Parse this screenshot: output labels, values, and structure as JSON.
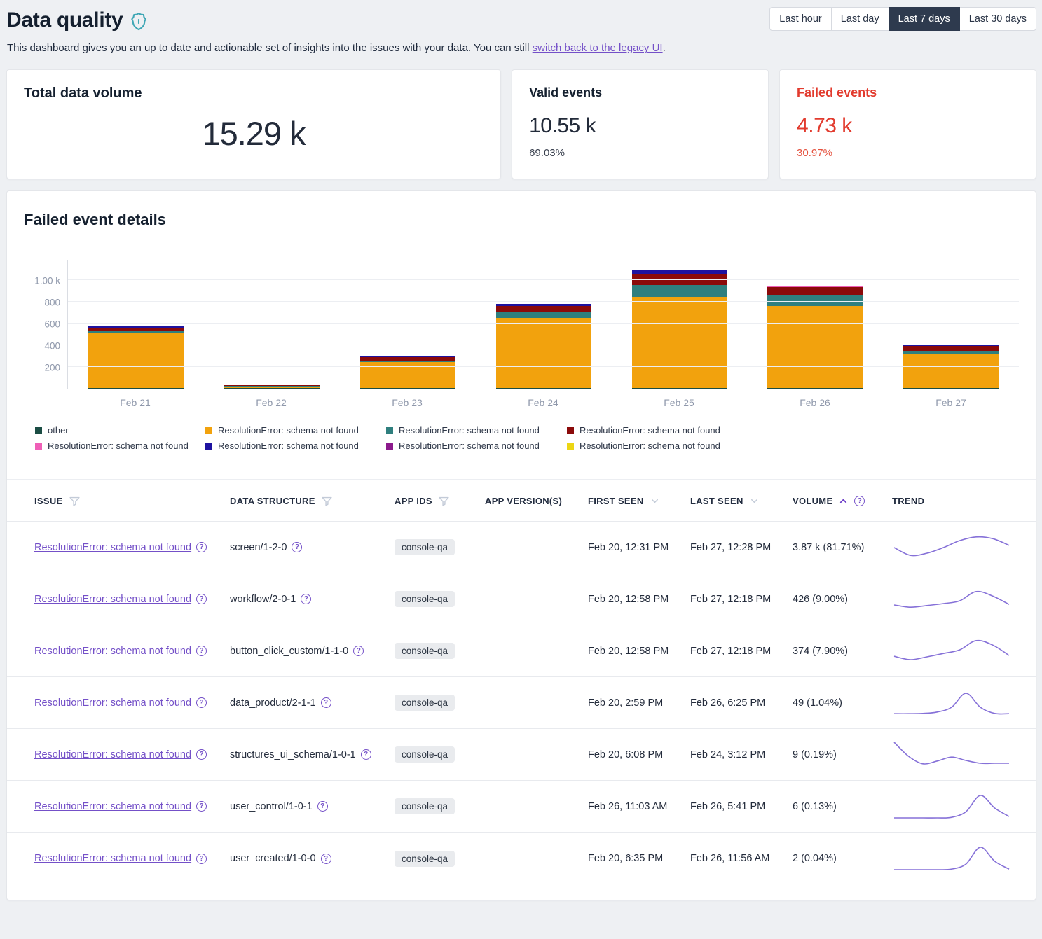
{
  "page": {
    "title": "Data quality",
    "subtitle_prefix": "This dashboard gives you an up to date and actionable set of insights into the issues with your data. You can still ",
    "subtitle_link": "switch back to the legacy UI",
    "subtitle_suffix": "."
  },
  "time_ranges": [
    {
      "label": "Last hour",
      "active": false
    },
    {
      "label": "Last day",
      "active": false
    },
    {
      "label": "Last 7 days",
      "active": true
    },
    {
      "label": "Last 30 days",
      "active": false
    }
  ],
  "stats": {
    "total": {
      "title": "Total data volume",
      "value": "15.29 k"
    },
    "valid": {
      "title": "Valid events",
      "value": "10.55 k",
      "percent": "69.03%"
    },
    "failed": {
      "title": "Failed events",
      "value": "4.73 k",
      "percent": "30.97%",
      "color": "#e23b2e"
    }
  },
  "failed_details": {
    "title": "Failed event details"
  },
  "chart_data": {
    "type": "bar",
    "stacked": true,
    "title": "Failed event details",
    "categories": [
      "Feb 21",
      "Feb 22",
      "Feb 23",
      "Feb 24",
      "Feb 25",
      "Feb 26",
      "Feb 27"
    ],
    "series": [
      {
        "name": "other",
        "color": "#1b4d44",
        "values": [
          8,
          2,
          6,
          8,
          8,
          8,
          6
        ]
      },
      {
        "name": "ResolutionError: schema not found",
        "color": "#f2a20d",
        "values": [
          505,
          15,
          235,
          645,
          835,
          750,
          315
        ]
      },
      {
        "name": "ResolutionError: schema not found",
        "color": "#2f7f7e",
        "values": [
          20,
          2,
          15,
          50,
          110,
          95,
          25
        ]
      },
      {
        "name": "ResolutionError: schema not found",
        "color": "#8b0a0a",
        "values": [
          30,
          2,
          35,
          55,
          105,
          80,
          45
        ]
      },
      {
        "name": "ResolutionError: schema not found",
        "color": "#1e12a0",
        "values": [
          8,
          0,
          3,
          18,
          30,
          0,
          4
        ]
      },
      {
        "name": "ResolutionError: schema not found",
        "color": "#ef5fb7",
        "values": [
          0,
          0,
          0,
          0,
          2,
          6,
          0
        ]
      },
      {
        "name": "ResolutionError: schema not found",
        "color": "#8c1a8c",
        "values": [
          0,
          0,
          0,
          0,
          0,
          0,
          0
        ]
      },
      {
        "name": "ResolutionError: schema not found",
        "color": "#ecd613",
        "values": [
          0,
          0,
          0,
          0,
          0,
          0,
          0
        ]
      }
    ],
    "y_ticks": [
      {
        "value": 200,
        "label": "200"
      },
      {
        "value": 400,
        "label": "400"
      },
      {
        "value": 600,
        "label": "600"
      },
      {
        "value": 800,
        "label": "800"
      },
      {
        "value": 1000,
        "label": "1.00 k"
      }
    ],
    "ymax": 1190,
    "grid": true,
    "legend_position": "bottom"
  },
  "legend": [
    {
      "label": "other",
      "color": "#1b4d44"
    },
    {
      "label": "ResolutionError: schema not found",
      "color": "#f2a20d"
    },
    {
      "label": "ResolutionError: schema not found",
      "color": "#2f7f7e"
    },
    {
      "label": "ResolutionError: schema not found",
      "color": "#8b0a0a"
    },
    {
      "label": "ResolutionError: schema not found",
      "color": "#ef5fb7"
    },
    {
      "label": "ResolutionError: schema not found",
      "color": "#1e12a0"
    },
    {
      "label": "ResolutionError: schema not found",
      "color": "#8c1a8c"
    },
    {
      "label": "ResolutionError: schema not found",
      "color": "#ecd613"
    }
  ],
  "table": {
    "columns": [
      {
        "label": "ISSUE",
        "icon": "filter"
      },
      {
        "label": "DATA STRUCTURE",
        "icon": "filter"
      },
      {
        "label": "APP IDS",
        "icon": "filter"
      },
      {
        "label": "APP VERSION(S)",
        "icon": "none"
      },
      {
        "label": "FIRST SEEN",
        "icon": "chevron-down"
      },
      {
        "label": "LAST SEEN",
        "icon": "chevron-down"
      },
      {
        "label": "VOLUME",
        "icon": "sort-asc-help"
      },
      {
        "label": "TREND",
        "icon": "none"
      }
    ],
    "rows": [
      {
        "issue": "ResolutionError: schema not found",
        "data_structure": "screen/1-2-0",
        "app_id": "console-qa",
        "app_versions": "",
        "first_seen": "Feb 20, 12:31 PM",
        "last_seen": "Feb 27, 12:28 PM",
        "volume": "3.87 k (81.71%)",
        "trend": [
          0.5,
          0.22,
          0.3,
          0.5,
          0.75,
          0.88,
          0.82,
          0.58
        ]
      },
      {
        "issue": "ResolutionError: schema not found",
        "data_structure": "workflow/2-0-1",
        "app_id": "console-qa",
        "app_versions": "",
        "first_seen": "Feb 20, 12:58 PM",
        "last_seen": "Feb 27, 12:18 PM",
        "volume": "426 (9.00%)",
        "trend": [
          0.3,
          0.22,
          0.28,
          0.35,
          0.45,
          0.78,
          0.62,
          0.32
        ]
      },
      {
        "issue": "ResolutionError: schema not found",
        "data_structure": "button_click_custom/1-1-0",
        "app_id": "console-qa",
        "app_versions": "",
        "first_seen": "Feb 20, 12:58 PM",
        "last_seen": "Feb 27, 12:18 PM",
        "volume": "374 (7.90%)",
        "trend": [
          0.32,
          0.2,
          0.3,
          0.42,
          0.55,
          0.88,
          0.72,
          0.35
        ]
      },
      {
        "issue": "ResolutionError: schema not found",
        "data_structure": "data_product/2-1-1",
        "app_id": "console-qa",
        "app_versions": "",
        "first_seen": "Feb 20, 2:59 PM",
        "last_seen": "Feb 26, 6:25 PM",
        "volume": "49 (1.04%)",
        "trend": [
          0.12,
          0.12,
          0.13,
          0.18,
          0.35,
          0.85,
          0.35,
          0.13,
          0.12
        ]
      },
      {
        "issue": "ResolutionError: schema not found",
        "data_structure": "structures_ui_schema/1-0-1",
        "app_id": "console-qa",
        "app_versions": "",
        "first_seen": "Feb 20, 6:08 PM",
        "last_seen": "Feb 24, 3:12 PM",
        "volume": "9 (0.19%)",
        "trend": [
          0.95,
          0.45,
          0.18,
          0.28,
          0.42,
          0.3,
          0.2,
          0.2,
          0.2
        ]
      },
      {
        "issue": "ResolutionError: schema not found",
        "data_structure": "user_control/1-0-1",
        "app_id": "console-qa",
        "app_versions": "",
        "first_seen": "Feb 26, 11:03 AM",
        "last_seen": "Feb 26, 5:41 PM",
        "volume": "6 (0.13%)",
        "trend": [
          0.1,
          0.1,
          0.1,
          0.1,
          0.12,
          0.32,
          0.9,
          0.45,
          0.15
        ]
      },
      {
        "issue": "ResolutionError: schema not found",
        "data_structure": "user_created/1-0-0",
        "app_id": "console-qa",
        "app_versions": "",
        "first_seen": "Feb 20, 6:35 PM",
        "last_seen": "Feb 26, 11:56 AM",
        "volume": "2 (0.04%)",
        "trend": [
          0.1,
          0.1,
          0.1,
          0.1,
          0.12,
          0.3,
          0.9,
          0.4,
          0.12
        ]
      }
    ]
  }
}
